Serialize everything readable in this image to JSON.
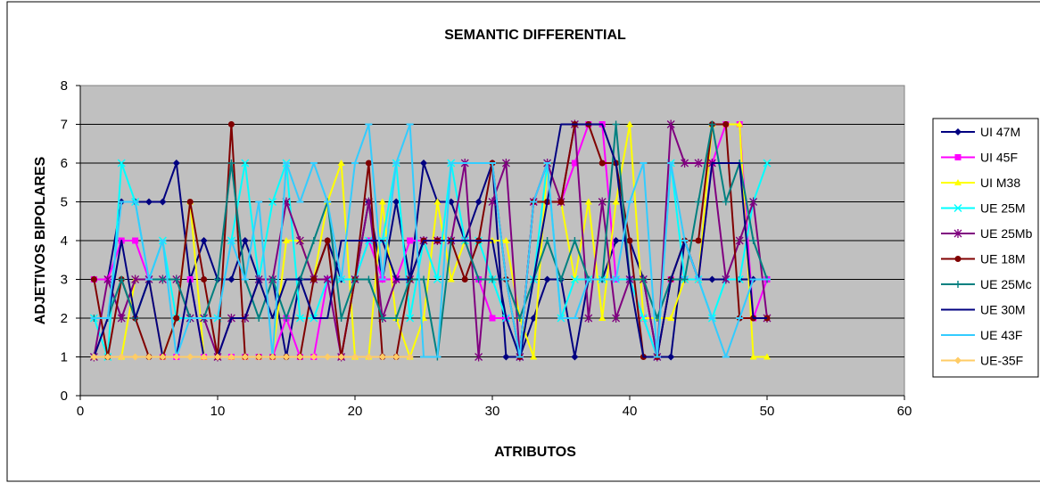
{
  "chart_data": {
    "type": "line",
    "title": "SEMANTIC DIFFERENTIAL",
    "xlabel": "ATRIBUTOS",
    "ylabel": "ADJETIVOS BIPOLARES",
    "xlim": [
      0,
      60
    ],
    "ylim": [
      0,
      8
    ],
    "x_ticks": [
      "0",
      "10",
      "20",
      "30",
      "40",
      "50",
      "60"
    ],
    "y_ticks": [
      "0",
      "1",
      "2",
      "3",
      "4",
      "5",
      "6",
      "7",
      "8"
    ],
    "grid": "horizontal",
    "plot_background": "#c0c0c0",
    "legend_position": "right",
    "x": [
      1,
      2,
      3,
      4,
      5,
      6,
      7,
      8,
      9,
      10,
      11,
      12,
      13,
      14,
      15,
      16,
      17,
      18,
      19,
      20,
      21,
      22,
      23,
      24,
      25,
      26,
      27,
      28,
      29,
      30,
      31,
      32,
      33,
      34,
      35,
      36,
      37,
      38,
      39,
      40,
      41,
      42,
      43,
      44,
      45,
      46,
      47,
      48,
      49,
      50
    ],
    "series": [
      {
        "name": "UI 47M",
        "color": "#000080",
        "marker": "diamond",
        "values": [
          3,
          3,
          5,
          5,
          5,
          5,
          6,
          3,
          4,
          3,
          3,
          4,
          3,
          3,
          1,
          3,
          3,
          4,
          3,
          3,
          5,
          3,
          5,
          3,
          6,
          5,
          5,
          4,
          5,
          6,
          1,
          1,
          2,
          3,
          3,
          1,
          3,
          3,
          4,
          4,
          3,
          1,
          1,
          4,
          3,
          3,
          3,
          3,
          3,
          3
        ]
      },
      {
        "name": "UI 45F",
        "color": "#ff00ff",
        "marker": "square",
        "values": [
          3,
          3,
          4,
          4,
          3,
          1,
          1,
          3,
          1,
          1,
          1,
          1,
          1,
          1,
          2,
          1,
          1,
          3,
          1,
          3,
          4,
          3,
          3,
          4,
          4,
          4,
          4,
          4,
          3,
          2,
          2,
          1,
          5,
          5,
          5,
          6,
          7,
          7,
          3,
          3,
          2,
          1,
          3,
          3,
          3,
          6,
          7,
          7,
          2,
          3
        ]
      },
      {
        "name": "UI M38",
        "color": "#ffff00",
        "marker": "triangle",
        "values": [
          1,
          1,
          1,
          3,
          3,
          1,
          2,
          5,
          1,
          1,
          1,
          1,
          1,
          1,
          4,
          4,
          3,
          5,
          6,
          1,
          1,
          5,
          2,
          1,
          2,
          5,
          3,
          4,
          4,
          4,
          4,
          2,
          1,
          6,
          5,
          3,
          5,
          2,
          5,
          7,
          2,
          2,
          2,
          3,
          3,
          7,
          7,
          7,
          1,
          1
        ]
      },
      {
        "name": "UE 25M",
        "color": "#00ffff",
        "marker": "x",
        "values": [
          2,
          1,
          6,
          5,
          3,
          4,
          2,
          2,
          2,
          2,
          4,
          6,
          3,
          5,
          6,
          2,
          2,
          3,
          3,
          3,
          4,
          4,
          6,
          2,
          4,
          3,
          6,
          4,
          4,
          3,
          2,
          1,
          3,
          6,
          2,
          3,
          3,
          3,
          3,
          3,
          2,
          1,
          6,
          3,
          3,
          2,
          3,
          3,
          5,
          6
        ]
      },
      {
        "name": "UE 25Mb",
        "color": "#800080",
        "marker": "star",
        "values": [
          1,
          3,
          2,
          3,
          3,
          3,
          3,
          2,
          2,
          1,
          2,
          2,
          3,
          3,
          5,
          4,
          3,
          3,
          1,
          3,
          5,
          2,
          3,
          3,
          4,
          4,
          4,
          6,
          1,
          5,
          6,
          1,
          5,
          6,
          5,
          7,
          2,
          5,
          2,
          3,
          3,
          1,
          7,
          6,
          6,
          6,
          3,
          4,
          5,
          2
        ]
      },
      {
        "name": "UE 18M",
        "color": "#800000",
        "marker": "circle",
        "values": [
          3,
          1,
          3,
          2,
          1,
          1,
          2,
          5,
          3,
          1,
          7,
          1,
          1,
          1,
          1,
          1,
          3,
          4,
          1,
          3,
          6,
          1,
          1,
          3,
          4,
          4,
          4,
          3,
          4,
          6,
          3,
          1,
          5,
          5,
          5,
          7,
          7,
          6,
          6,
          4,
          1,
          1,
          3,
          4,
          4,
          7,
          7,
          2,
          2,
          2
        ]
      },
      {
        "name": "UE 25Mc",
        "color": "#008080",
        "marker": "plus",
        "values": [
          2,
          2,
          3,
          2,
          3,
          3,
          3,
          2,
          2,
          3,
          6,
          3,
          2,
          3,
          2,
          3,
          4,
          5,
          2,
          3,
          3,
          2,
          2,
          3,
          3,
          1,
          4,
          4,
          3,
          3,
          3,
          2,
          3,
          4,
          3,
          4,
          3,
          3,
          7,
          3,
          3,
          2,
          3,
          3,
          5,
          7,
          5,
          6,
          4,
          3
        ]
      },
      {
        "name": "UE 30M",
        "color": "#000080",
        "marker": "none",
        "values": [
          1,
          2,
          4,
          2,
          3,
          1,
          1,
          3,
          1,
          1,
          2,
          2,
          3,
          2,
          3,
          3,
          2,
          2,
          4,
          4,
          4,
          4,
          3,
          3,
          4,
          4,
          4,
          4,
          4,
          4,
          2,
          1,
          3,
          5,
          7,
          7,
          7,
          7,
          6,
          3,
          1,
          1,
          3,
          4,
          3,
          6,
          6,
          6,
          2,
          2
        ]
      },
      {
        "name": "UE 43F",
        "color": "#33ccff",
        "marker": "dash",
        "values": [
          2,
          2,
          5,
          5,
          3,
          4,
          1,
          2,
          2,
          2,
          4,
          3,
          5,
          1,
          6,
          5,
          6,
          5,
          3,
          6,
          7,
          3,
          6,
          7,
          1,
          1,
          6,
          6,
          6,
          6,
          3,
          1,
          5,
          6,
          2,
          2,
          3,
          3,
          3,
          5,
          6,
          1,
          6,
          4,
          3,
          2,
          1,
          2,
          3,
          3
        ]
      },
      {
        "name": "UE-35F",
        "color": "#ffcc66",
        "marker": "diamond",
        "values": [
          1,
          1,
          1,
          1,
          1,
          1,
          1,
          1,
          1,
          1,
          1,
          1,
          1,
          1,
          1,
          1,
          1,
          1,
          1,
          1,
          1,
          1,
          1,
          1,
          null,
          null,
          null,
          null,
          null,
          null,
          null,
          null,
          null,
          null,
          null,
          null,
          null,
          null,
          null,
          null,
          null,
          null,
          null,
          null,
          null,
          null,
          null,
          null,
          null,
          null
        ]
      }
    ]
  }
}
